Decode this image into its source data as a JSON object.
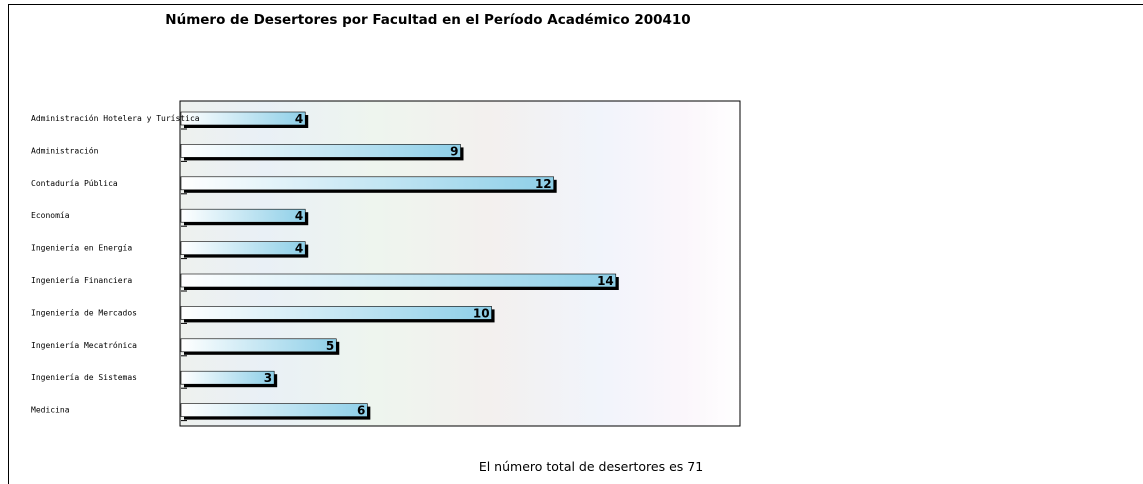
{
  "chart_data": {
    "type": "bar",
    "orientation": "horizontal",
    "title": "Número de Desertores por Facultad en el Período Académico 200410",
    "categories": [
      "Administración Hotelera y Turística",
      "Administración",
      "Contaduría Pública",
      "Economía",
      "Ingeniería en Energía",
      "Ingeniería Financiera",
      "Ingeniería de Mercados",
      "Ingeniería Mecatrónica",
      "Ingeniería de Sistemas",
      "Medicina"
    ],
    "values": [
      4,
      9,
      12,
      4,
      4,
      14,
      10,
      5,
      3,
      6
    ],
    "xlim": [
      0,
      18
    ],
    "grid": false,
    "legend": "none",
    "bar_color_start": "#ffffff",
    "bar_color_end": "#8ecfe8",
    "shadow_color": "#000000"
  },
  "footer": "El número total de desertores es 71"
}
